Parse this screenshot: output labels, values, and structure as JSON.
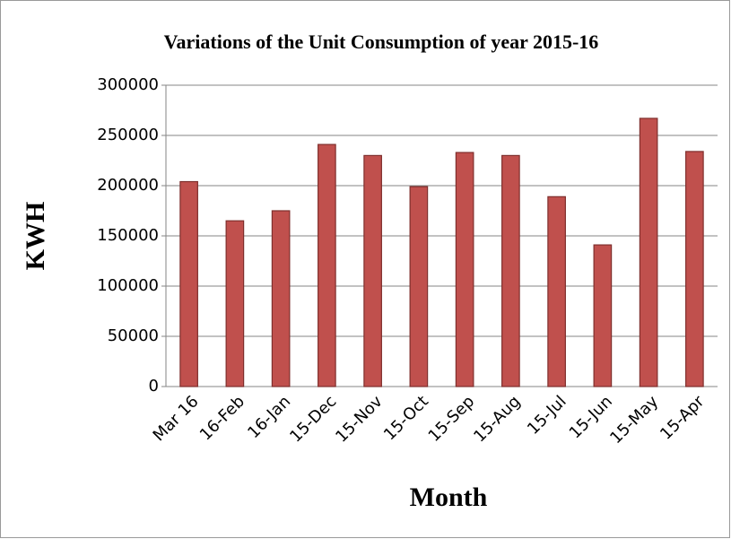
{
  "chart_data": {
    "type": "bar",
    "title": "Variations of the Unit Consumption of year 2015-16",
    "x_label": "Month",
    "y_label": "KWH",
    "categories": [
      "Mar 16",
      "16-Feb",
      "16-Jan",
      "15-Dec",
      "15-Nov",
      "15-Oct",
      "15-Sep",
      "15-Aug",
      "15-Jul",
      "15-Jun",
      "15-May",
      "15-Apr"
    ],
    "values": [
      204000,
      165000,
      175000,
      241000,
      230000,
      199000,
      233000,
      230000,
      189000,
      141000,
      267000,
      234000
    ],
    "color": "#c0504d",
    "ylim": [
      0,
      300000
    ],
    "yticks": [
      0,
      50000,
      100000,
      150000,
      200000,
      250000,
      300000
    ],
    "grid": true
  }
}
